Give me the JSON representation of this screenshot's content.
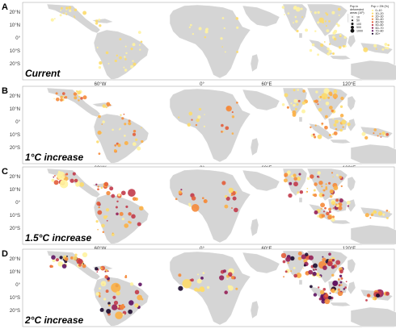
{
  "figure": {
    "panels": [
      {
        "letter": "A",
        "scenario": "Current",
        "level": 0,
        "y_labels": [
          "20°N",
          "10°N",
          "0°",
          "10°S",
          "20°S"
        ],
        "x_labels": [
          "60°W",
          "0°",
          "60°E",
          "120°E"
        ]
      },
      {
        "letter": "B",
        "scenario": "1°C increase",
        "level": 1,
        "y_labels": [
          "20°N",
          "10°N",
          "0°",
          "10°S",
          "20°S"
        ],
        "x_labels": [
          "60°W",
          "0°",
          "60°E",
          "120°E"
        ]
      },
      {
        "letter": "C",
        "scenario": "1.5°C increase",
        "level": 2,
        "y_labels": [
          "20°N",
          "10°N",
          "0°",
          "10°S",
          "20°S"
        ],
        "x_labels": [
          "60°W",
          "0°",
          "60°E",
          "120°E"
        ]
      },
      {
        "letter": "D",
        "scenario": "2°C increase",
        "level": 3,
        "y_labels": [
          "20°N",
          "10°N",
          "0°",
          "10°S",
          "20°S"
        ],
        "x_labels": [
          "60°W",
          "0°",
          "60°E",
          "120°E"
        ]
      }
    ],
    "legend": {
      "size_title_1": "Pop in",
      "size_title_2": "deforested",
      "size_title_3": "areas (10³)",
      "size_items": [
        "10",
        "50",
        "100",
        "500",
        "1000"
      ],
      "color_title": "Pop > 29t (%)",
      "color_items": [
        "0–10",
        "10–20",
        "20–30",
        "30–40",
        "40–50",
        "50–60",
        "60–70",
        "70–80",
        "80+"
      ],
      "color_values": [
        "#fff3a0",
        "#fddc6a",
        "#fcb045",
        "#f58a3a",
        "#e35d3a",
        "#c23a4a",
        "#951f57",
        "#5c1160",
        "#1c0a2e"
      ]
    },
    "land_color": "#d5d5d5",
    "background_color": "#ffffff"
  }
}
